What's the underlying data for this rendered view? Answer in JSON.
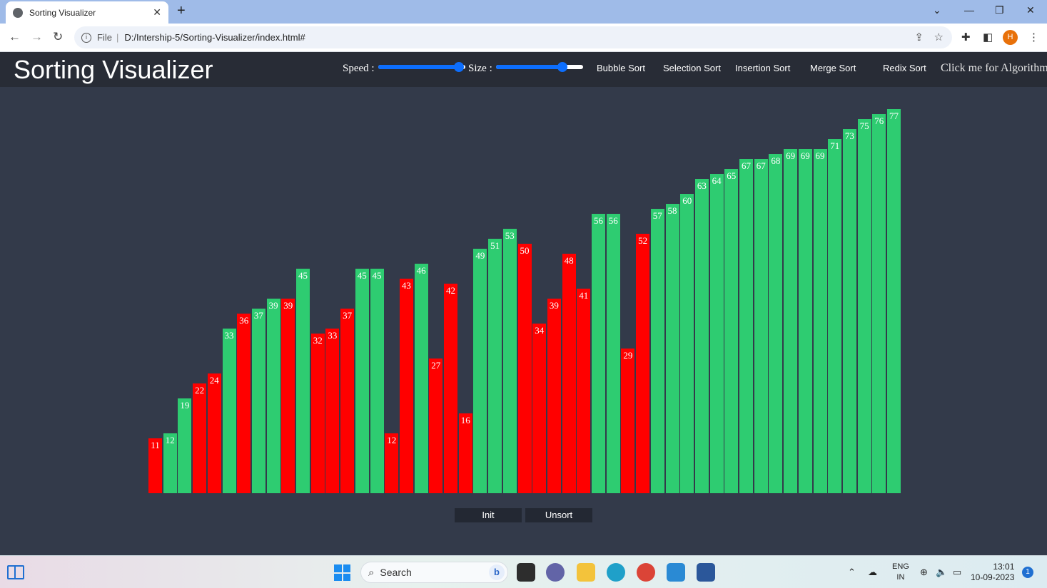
{
  "browser": {
    "tab_title": "Sorting Visualizer",
    "new_tab": "+",
    "url_scheme": "File",
    "url": "D:/Intership-5/Sorting-Visualizer/index.html#",
    "profile_initial": "H"
  },
  "app": {
    "title": "Sorting Visualizer",
    "speed_label": "Speed :",
    "size_label": "Size :",
    "speed_level": 0.93,
    "size_level": 0.76,
    "algorithms": [
      "Bubble Sort",
      "Selection Sort",
      "Insertion Sort",
      "Merge Sort",
      "Redix Sort"
    ],
    "algorithm_link": "Click me for Algorithm!",
    "init_label": "Init",
    "unsort_label": "Unsort"
  },
  "colors": {
    "sorted": "#2ecc71",
    "unsorted": "#ff0000",
    "background": "#333a4a",
    "header": "#282c36",
    "accent": "#0d6efd"
  },
  "chart_data": {
    "type": "bar",
    "values": [
      11,
      12,
      19,
      22,
      24,
      33,
      36,
      37,
      39,
      39,
      45,
      32,
      33,
      37,
      45,
      45,
      12,
      43,
      46,
      27,
      42,
      16,
      49,
      51,
      53,
      50,
      34,
      39,
      48,
      41,
      56,
      56,
      29,
      52,
      57,
      58,
      60,
      63,
      64,
      65,
      67,
      67,
      68,
      69,
      69,
      69,
      71,
      73,
      75,
      76,
      77
    ],
    "states": [
      "u",
      "s",
      "s",
      "u",
      "u",
      "s",
      "u",
      "s",
      "s",
      "u",
      "s",
      "u",
      "u",
      "u",
      "s",
      "s",
      "u",
      "u",
      "s",
      "u",
      "u",
      "u",
      "s",
      "s",
      "s",
      "u",
      "u",
      "u",
      "u",
      "u",
      "s",
      "s",
      "u",
      "u",
      "s",
      "s",
      "s",
      "s",
      "s",
      "s",
      "s",
      "s",
      "s",
      "s",
      "s",
      "s",
      "s",
      "s",
      "s",
      "s",
      "s"
    ]
  },
  "taskbar": {
    "search_placeholder": "Search",
    "lang_top": "ENG",
    "lang_bottom": "IN",
    "time": "13:01",
    "date": "10-09-2023",
    "notifications": "1"
  }
}
